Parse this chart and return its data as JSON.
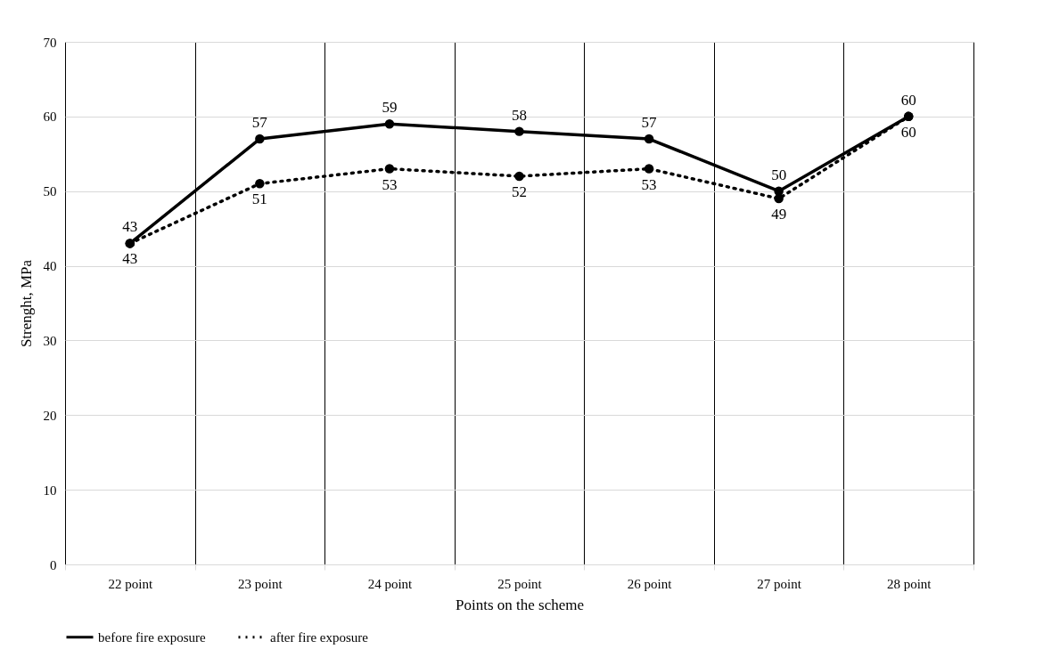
{
  "chart_data": {
    "type": "line",
    "xlabel": "Points on the scheme",
    "ylabel": "Strenght, MPa",
    "categories": [
      "22 point",
      "23 point",
      "24 point",
      "25 point",
      "26 point",
      "27 point",
      "28 point"
    ],
    "series": [
      {
        "name": "before fire exposure",
        "color": "#000000",
        "line_style": "solid",
        "values": [
          43,
          57,
          59,
          58,
          57,
          50,
          60
        ]
      },
      {
        "name": "after fire exposure",
        "color": "#000000",
        "line_style": "dotted",
        "values": [
          43,
          51,
          53,
          52,
          53,
          49,
          60
        ]
      }
    ],
    "ylim": [
      0,
      70
    ],
    "yticks": [
      0,
      10,
      20,
      30,
      40,
      50,
      60,
      70
    ],
    "grid": true,
    "legend": "bottom",
    "marker": "circle",
    "data_labels": true
  }
}
